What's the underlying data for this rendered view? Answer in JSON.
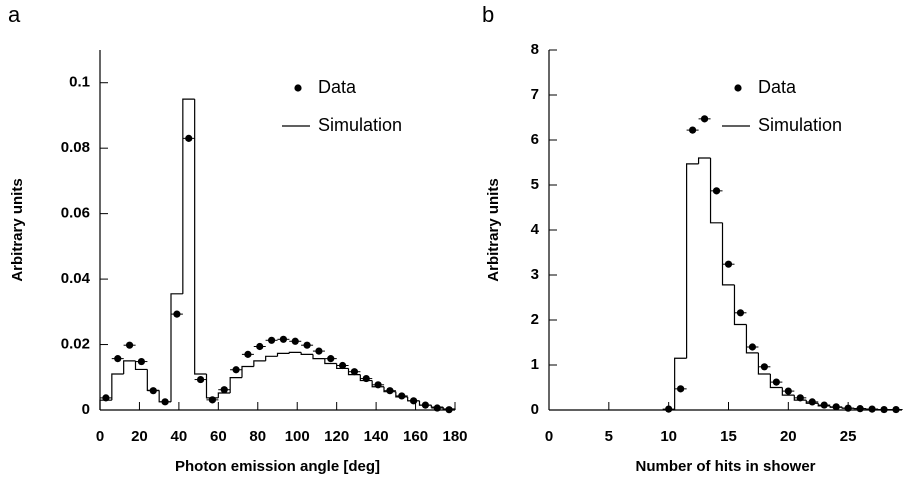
{
  "chart_data": [
    {
      "type": "histogram",
      "panel_label": "a",
      "xlabel": "Photon emission angle [deg]",
      "ylabel": "Arbitrary units",
      "xlim": [
        0,
        180
      ],
      "ylim": [
        0,
        0.11
      ],
      "xticks": [
        0,
        20,
        40,
        60,
        80,
        100,
        120,
        140,
        160,
        180
      ],
      "yticks": [
        0,
        0.02,
        0.04,
        0.06,
        0.08,
        0.1
      ],
      "bins": [
        0,
        6,
        12,
        18,
        24,
        30,
        36,
        42,
        48,
        54,
        60,
        66,
        72,
        78,
        84,
        90,
        96,
        102,
        108,
        114,
        120,
        126,
        132,
        138,
        144,
        150,
        156,
        162,
        168,
        174,
        180
      ],
      "series": [
        {
          "name": "Data",
          "style": "points",
          "color": "#000000",
          "x": [
            3,
            9,
            15,
            21,
            27,
            33,
            39,
            45,
            51,
            57,
            63,
            69,
            75,
            81,
            87,
            93,
            99,
            105,
            111,
            117,
            123,
            129,
            135,
            141,
            147,
            153,
            159,
            165,
            171,
            177
          ],
          "values": [
            0.0037,
            0.0157,
            0.0198,
            0.0148,
            0.0059,
            0.0025,
            0.0293,
            0.083,
            0.0093,
            0.0031,
            0.0062,
            0.0123,
            0.017,
            0.0194,
            0.0213,
            0.0216,
            0.021,
            0.0198,
            0.018,
            0.0157,
            0.0136,
            0.0117,
            0.0096,
            0.0077,
            0.0059,
            0.0043,
            0.0028,
            0.0015,
            0.0006,
            0.0001
          ]
        },
        {
          "name": "Simulation",
          "style": "step",
          "color": "#000000",
          "values": [
            0.003,
            0.011,
            0.015,
            0.0124,
            0.006,
            0.0025,
            0.0355,
            0.095,
            0.011,
            0.0037,
            0.0052,
            0.0099,
            0.0133,
            0.015,
            0.0164,
            0.0173,
            0.0176,
            0.017,
            0.0157,
            0.0142,
            0.0127,
            0.0108,
            0.009,
            0.0071,
            0.0056,
            0.004,
            0.0028,
            0.0015,
            0.0009,
            0.0003
          ]
        }
      ]
    },
    {
      "type": "histogram",
      "panel_label": "b",
      "xlabel": "Number of hits in shower",
      "ylabel": "Arbitrary units",
      "xlim": [
        0,
        29.5
      ],
      "ylim": [
        0,
        8
      ],
      "xticks": [
        0,
        5,
        10,
        15,
        20,
        25
      ],
      "yticks": [
        0,
        1,
        2,
        3,
        4,
        5,
        6,
        7,
        8
      ],
      "bins": [
        10.5,
        11.5,
        12.5,
        13.5,
        14.5,
        15.5,
        16.5,
        17.5,
        18.5,
        19.5,
        20.5,
        21.5,
        22.5,
        23.5,
        24.5,
        25.5,
        26.5,
        27.5,
        28.5,
        29.5
      ],
      "series": [
        {
          "name": "Data",
          "style": "points",
          "color": "#000000",
          "x": [
            10,
            11,
            12,
            13,
            14,
            15,
            16,
            17,
            18,
            19,
            20,
            21,
            22,
            23,
            24,
            25,
            26,
            27,
            28,
            29
          ],
          "values": [
            0.02,
            0.47,
            6.22,
            6.47,
            4.87,
            3.24,
            2.16,
            1.4,
            0.96,
            0.62,
            0.42,
            0.27,
            0.18,
            0.11,
            0.07,
            0.04,
            0.03,
            0.02,
            0.01,
            0.01
          ]
        },
        {
          "name": "Simulation",
          "style": "step",
          "color": "#000000",
          "values": [
            1.15,
            5.47,
            5.6,
            4.16,
            2.78,
            1.9,
            1.27,
            0.8,
            0.5,
            0.33,
            0.22,
            0.15,
            0.09,
            0.06,
            0.04,
            0.03,
            0.02,
            0.01,
            0.01
          ]
        }
      ]
    }
  ]
}
